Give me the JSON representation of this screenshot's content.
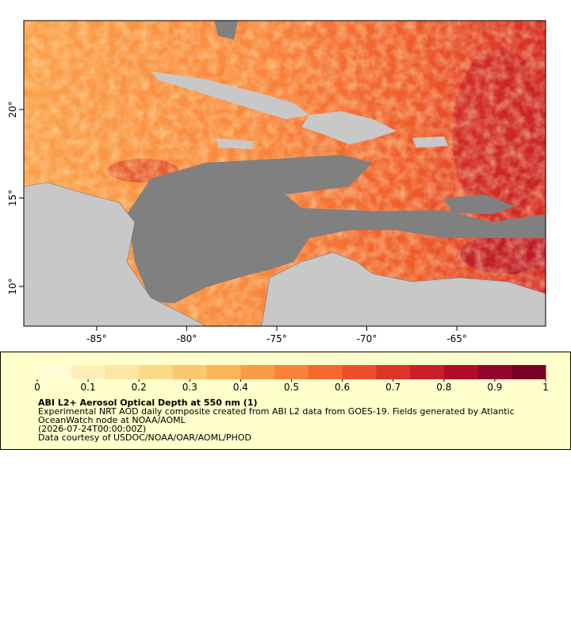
{
  "chart_data": {
    "type": "map",
    "xlim": [
      -89.05,
      -60.07
    ],
    "ylim": [
      7.76,
      25.02
    ],
    "xticks": [
      {
        "value": -85,
        "label": "-85°"
      },
      {
        "value": -80,
        "label": "-80°"
      },
      {
        "value": -75,
        "label": "-75°"
      },
      {
        "value": -70,
        "label": "-70°"
      },
      {
        "value": -65,
        "label": "-65°"
      }
    ],
    "yticks": [
      {
        "value": 10,
        "label": "10°"
      },
      {
        "value": 15,
        "label": "15°"
      },
      {
        "value": 20,
        "label": "20°"
      }
    ],
    "colorbar": {
      "lim": [
        0,
        1
      ],
      "ticks": [
        0,
        0.1,
        0.2,
        0.3,
        0.4,
        0.5,
        0.6,
        0.7,
        0.8,
        0.9,
        1
      ],
      "colormap": [
        "#fffbd6",
        "#fff0bb",
        "#fee6a3",
        "#fdd98a",
        "#fdc770",
        "#fcb45a",
        "#fb9b48",
        "#f9823a",
        "#f3682f",
        "#ea4f29",
        "#dc3526",
        "#c91f26",
        "#b10d2b",
        "#93052d",
        "#7a0024"
      ]
    },
    "legend": {
      "title": "ABI L2+ Aerosol Optical Depth at 550 nm (1)",
      "lines": [
        "Experimental NRT AOD daily composite created from ABI L2 data from GOES-19. Fields generated by Atlantic",
        "OceanWatch node at NOAA/AOML",
        "(2026-07-24T00:00:00Z)",
        "Data courtesy of USDOC/NOAA/OAR/AOML/PHOD"
      ]
    }
  }
}
